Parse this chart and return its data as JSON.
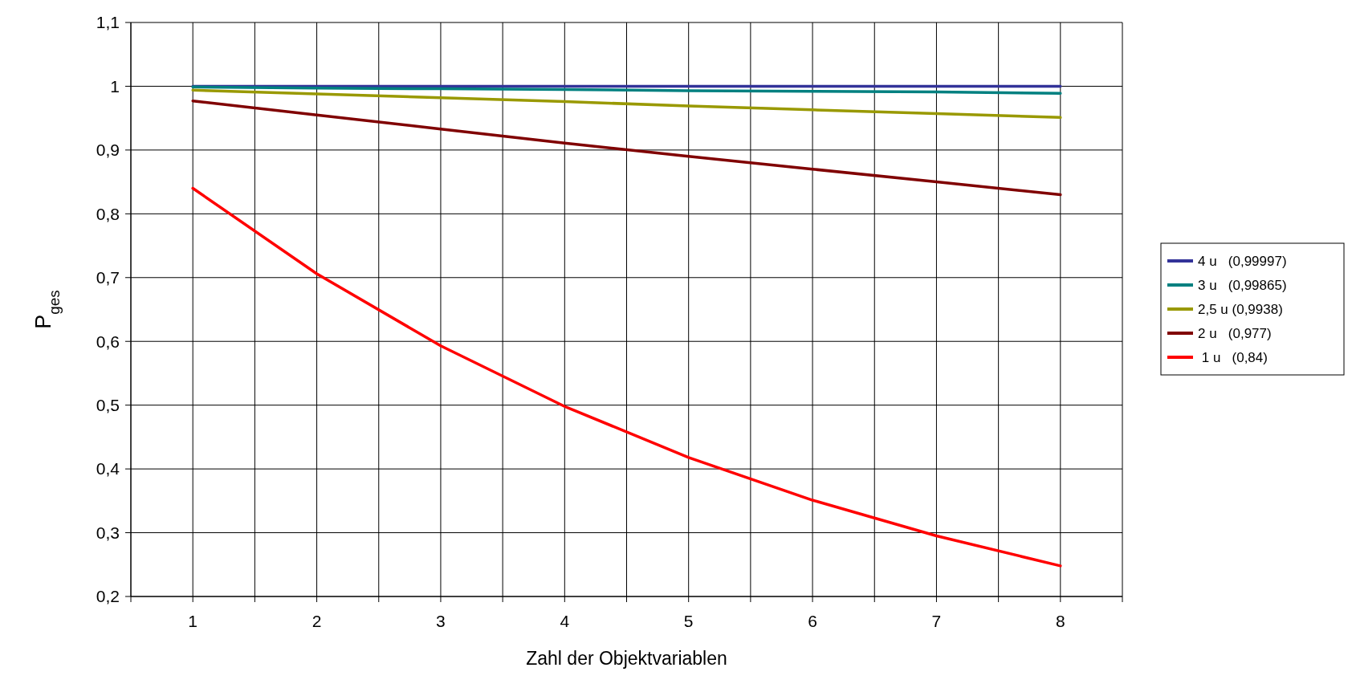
{
  "chart_data": {
    "type": "line",
    "xlabel": "Zahl der Objektvariablen",
    "ylabel": "P$_{ges}$",
    "x": [
      1,
      2,
      3,
      4,
      5,
      6,
      7,
      8
    ],
    "xlim": [
      0.5,
      8.5
    ],
    "xticks": [
      {
        "value": 0.5,
        "label": null
      },
      1,
      {
        "value": 1.5,
        "label": null
      },
      2,
      {
        "value": 2.5,
        "label": null
      },
      3,
      {
        "value": 3.5,
        "label": null
      },
      4,
      {
        "value": 4.5,
        "label": null
      },
      5,
      {
        "value": 5.5,
        "label": null
      },
      6,
      {
        "value": 6.5,
        "label": null
      },
      7,
      {
        "value": 7.5,
        "label": null
      },
      8,
      {
        "value": 8.5,
        "label": null
      }
    ],
    "ylim": [
      0.2,
      1.1
    ],
    "yticks": [
      {
        "value": 0.2,
        "label": "0,2"
      },
      {
        "value": 0.3,
        "label": "0,3"
      },
      {
        "value": 0.4,
        "label": "0,4"
      },
      {
        "value": 0.5,
        "label": "0,5"
      },
      {
        "value": 0.6,
        "label": "0,6"
      },
      {
        "value": 0.7,
        "label": "0,7"
      },
      {
        "value": 0.8,
        "label": "0,8"
      },
      {
        "value": 0.9,
        "label": "0,9"
      },
      {
        "value": 1,
        "label": "1"
      },
      {
        "value": 1.1,
        "label": "1,1"
      }
    ],
    "grid": true,
    "legend": "right",
    "marker": "none",
    "line_style": "solid",
    "series": [
      {
        "name": "4 u   (0,99997)",
        "color": "#333399",
        "values": [
          1.0,
          1.0,
          1.0,
          1.0,
          1.0,
          1.0,
          1.0,
          1.0
        ]
      },
      {
        "name": "3 u   (0,99865)",
        "color": "#008080",
        "values": [
          0.999,
          0.997,
          0.996,
          0.995,
          0.993,
          0.992,
          0.991,
          0.989
        ]
      },
      {
        "name": "2,5 u (0,9938)",
        "color": "#999900",
        "values": [
          0.994,
          0.988,
          0.982,
          0.976,
          0.969,
          0.963,
          0.957,
          0.951
        ]
      },
      {
        "name": "2 u   (0,977)",
        "color": "#800000",
        "values": [
          0.977,
          0.955,
          0.933,
          0.911,
          0.89,
          0.87,
          0.85,
          0.83
        ]
      },
      {
        "name": " 1 u   (0,84)",
        "color": "#ff0000",
        "values": [
          0.84,
          0.706,
          0.593,
          0.498,
          0.418,
          0.351,
          0.295,
          0.248
        ]
      }
    ]
  }
}
